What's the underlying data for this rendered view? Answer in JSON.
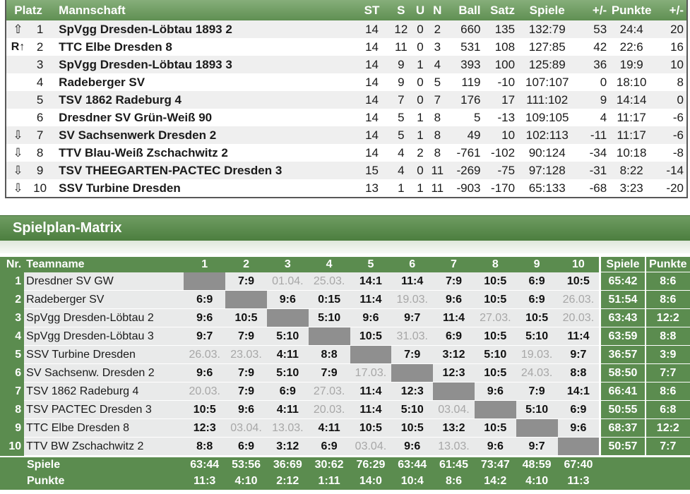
{
  "standings": {
    "headers": [
      "Platz",
      "Mannschaft",
      "ST",
      "S",
      "U",
      "N",
      "Ball",
      "Satz",
      "Spiele",
      "+/-",
      "Punkte",
      "+/-"
    ],
    "rows": [
      {
        "icon": "⇧",
        "icon_name": "arrow-up-icon",
        "platz": "1",
        "team": "SpVgg Dresden-Löbtau 1893 2",
        "st": "14",
        "s": "12",
        "u": "0",
        "n": "2",
        "ball": "660",
        "satz": "135",
        "spiele": "132:79",
        "diff": "53",
        "punkte": "24:4",
        "pdiff": "20"
      },
      {
        "icon": "R↑",
        "icon_name": "relegation-up-icon",
        "platz": "2",
        "team": "TTC Elbe Dresden 8",
        "st": "14",
        "s": "11",
        "u": "0",
        "n": "3",
        "ball": "531",
        "satz": "108",
        "spiele": "127:85",
        "diff": "42",
        "punkte": "22:6",
        "pdiff": "16"
      },
      {
        "icon": "",
        "icon_name": "",
        "platz": "3",
        "team": "SpVgg Dresden-Löbtau 1893 3",
        "st": "14",
        "s": "9",
        "u": "1",
        "n": "4",
        "ball": "393",
        "satz": "100",
        "spiele": "125:89",
        "diff": "36",
        "punkte": "19:9",
        "pdiff": "10"
      },
      {
        "icon": "",
        "icon_name": "",
        "platz": "4",
        "team": "Radeberger SV",
        "st": "14",
        "s": "9",
        "u": "0",
        "n": "5",
        "ball": "119",
        "satz": "-10",
        "spiele": "107:107",
        "diff": "0",
        "punkte": "18:10",
        "pdiff": "8"
      },
      {
        "icon": "",
        "icon_name": "",
        "platz": "5",
        "team": "TSV 1862 Radeburg 4",
        "st": "14",
        "s": "7",
        "u": "0",
        "n": "7",
        "ball": "176",
        "satz": "17",
        "spiele": "111:102",
        "diff": "9",
        "punkte": "14:14",
        "pdiff": "0"
      },
      {
        "icon": "",
        "icon_name": "",
        "platz": "6",
        "team": "Dresdner SV Grün-Weiß 90",
        "st": "14",
        "s": "5",
        "u": "1",
        "n": "8",
        "ball": "5",
        "satz": "-13",
        "spiele": "109:105",
        "diff": "4",
        "punkte": "11:17",
        "pdiff": "-6"
      },
      {
        "icon": "⇩",
        "icon_name": "arrow-down-icon",
        "platz": "7",
        "team": "SV Sachsenwerk Dresden 2",
        "st": "14",
        "s": "5",
        "u": "1",
        "n": "8",
        "ball": "49",
        "satz": "10",
        "spiele": "102:113",
        "diff": "-11",
        "punkte": "11:17",
        "pdiff": "-6"
      },
      {
        "icon": "⇩",
        "icon_name": "arrow-down-icon",
        "platz": "8",
        "team": "TTV Blau-Weiß Zschachwitz 2",
        "st": "14",
        "s": "4",
        "u": "2",
        "n": "8",
        "ball": "-761",
        "satz": "-102",
        "spiele": "90:124",
        "diff": "-34",
        "punkte": "10:18",
        "pdiff": "-8"
      },
      {
        "icon": "⇩",
        "icon_name": "arrow-down-icon",
        "platz": "9",
        "team": "TSV THEEGARTEN-PACTEC Dresden 3",
        "st": "15",
        "s": "4",
        "u": "0",
        "n": "11",
        "ball": "-269",
        "satz": "-75",
        "spiele": "97:128",
        "diff": "-31",
        "punkte": "8:22",
        "pdiff": "-14"
      },
      {
        "icon": "⇩",
        "icon_name": "arrow-down-icon",
        "platz": "10",
        "team": "SSV Turbine Dresden",
        "st": "13",
        "s": "1",
        "u": "1",
        "n": "11",
        "ball": "-903",
        "satz": "-170",
        "spiele": "65:133",
        "diff": "-68",
        "punkte": "3:23",
        "pdiff": "-20"
      }
    ]
  },
  "section_title": "Spielplan-Matrix",
  "matrix": {
    "headers": {
      "nr": "Nr.",
      "team": "Teamname",
      "cols": [
        "1",
        "2",
        "3",
        "4",
        "5",
        "6",
        "7",
        "8",
        "9",
        "10"
      ],
      "spiele": "Spiele",
      "punkte": "Punkte"
    },
    "rows": [
      {
        "nr": "1",
        "team": "Dresdner SV GW",
        "cells": [
          "",
          "7:9",
          "01.04.",
          "25.03.",
          "14:1",
          "11:4",
          "7:9",
          "10:5",
          "6:9",
          "10:5"
        ],
        "spiele": "65:42",
        "punkte": "8:6"
      },
      {
        "nr": "2",
        "team": "Radeberger SV",
        "cells": [
          "6:9",
          "",
          "9:6",
          "0:15",
          "11:4",
          "19.03.",
          "9:6",
          "10:5",
          "6:9",
          "26.03."
        ],
        "spiele": "51:54",
        "punkte": "8:6"
      },
      {
        "nr": "3",
        "team": "SpVgg Dresden-Löbtau 2",
        "cells": [
          "9:6",
          "10:5",
          "",
          "5:10",
          "9:6",
          "9:7",
          "11:4",
          "27.03.",
          "10:5",
          "20.03."
        ],
        "spiele": "63:43",
        "punkte": "12:2"
      },
      {
        "nr": "4",
        "team": "SpVgg Dresden-Löbtau 3",
        "cells": [
          "9:7",
          "7:9",
          "5:10",
          "",
          "10:5",
          "31.03.",
          "6:9",
          "10:5",
          "5:10",
          "11:4"
        ],
        "spiele": "63:59",
        "punkte": "8:8"
      },
      {
        "nr": "5",
        "team": "SSV Turbine Dresden",
        "cells": [
          "26.03.",
          "23.03.",
          "4:11",
          "8:8",
          "",
          "7:9",
          "3:12",
          "5:10",
          "19.03.",
          "9:7"
        ],
        "spiele": "36:57",
        "punkte": "3:9"
      },
      {
        "nr": "6",
        "team": "SV Sachsenw. Dresden 2",
        "cells": [
          "9:6",
          "7:9",
          "5:10",
          "7:9",
          "17.03.",
          "",
          "12:3",
          "10:5",
          "24.03.",
          "8:8"
        ],
        "spiele": "58:50",
        "punkte": "7:7"
      },
      {
        "nr": "7",
        "team": "TSV 1862 Radeburg 4",
        "cells": [
          "20.03.",
          "7:9",
          "6:9",
          "27.03.",
          "11:4",
          "12:3",
          "",
          "9:6",
          "7:9",
          "14:1"
        ],
        "spiele": "66:41",
        "punkte": "8:6"
      },
      {
        "nr": "8",
        "team": "TSV PACTEC Dresden 3",
        "cells": [
          "10:5",
          "9:6",
          "4:11",
          "20.03.",
          "11:4",
          "5:10",
          "03.04.",
          "",
          "5:10",
          "6:9"
        ],
        "spiele": "50:55",
        "punkte": "6:8"
      },
      {
        "nr": "9",
        "team": "TTC Elbe Dresden 8",
        "cells": [
          "12:3",
          "03.04.",
          "13.03.",
          "4:11",
          "10:5",
          "10:5",
          "13:2",
          "10:5",
          "",
          "9:6"
        ],
        "spiele": "68:37",
        "punkte": "12:2"
      },
      {
        "nr": "10",
        "team": "TTV BW Zschachwitz 2",
        "cells": [
          "8:8",
          "6:9",
          "3:12",
          "6:9",
          "03.04.",
          "9:6",
          "13.03.",
          "9:6",
          "9:7",
          ""
        ],
        "spiele": "50:57",
        "punkte": "7:7"
      }
    ],
    "footer": [
      {
        "label": "Spiele",
        "values": [
          "63:44",
          "53:56",
          "36:69",
          "30:62",
          "76:29",
          "63:44",
          "61:45",
          "73:47",
          "48:59",
          "67:40"
        ]
      },
      {
        "label": "Punkte",
        "values": [
          "11:3",
          "4:10",
          "2:12",
          "1:11",
          "14:0",
          "10:4",
          "8:6",
          "14:2",
          "4:10",
          "11:3"
        ]
      }
    ]
  }
}
